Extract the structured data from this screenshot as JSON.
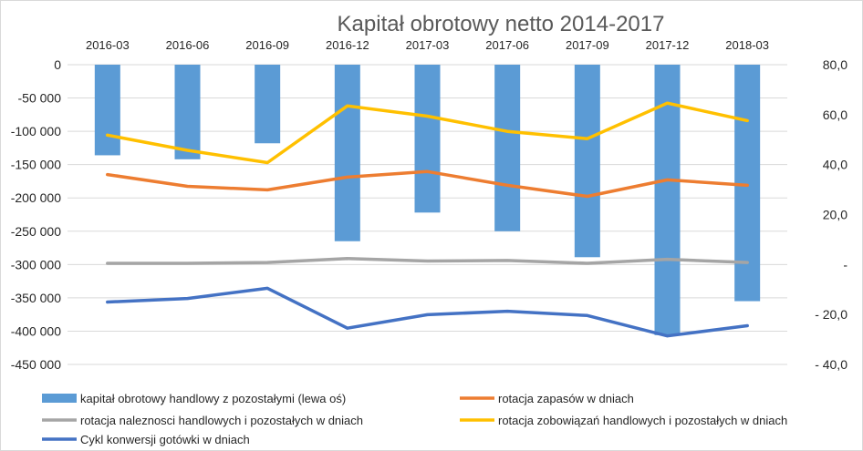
{
  "chart_data": {
    "type": "bar",
    "title": "Kapitał obrotowy netto 2014-2017",
    "categories": [
      "2016-03",
      "2016-06",
      "2016-09",
      "2016-12",
      "2017-03",
      "2017-06",
      "2017-09",
      "2017-12",
      "2018-03"
    ],
    "left_axis": {
      "ylim": [
        -450000,
        0
      ],
      "ticks": [
        0,
        -50000,
        -100000,
        -150000,
        -200000,
        -250000,
        -300000,
        -350000,
        -400000,
        -450000
      ],
      "tick_labels": [
        "0",
        "-50 000",
        "-100 000",
        "-150 000",
        "-200 000",
        "-250 000",
        "-300 000",
        "-350 000",
        "-400 000",
        "-450 000"
      ]
    },
    "right_axis": {
      "ylim": [
        -40,
        80
      ],
      "ticks": [
        80,
        60,
        40,
        20,
        0,
        -20,
        -40
      ],
      "tick_labels": [
        "80,0",
        "60,0",
        "40,0",
        "20,0",
        "-",
        "- 20,0",
        "- 40,0"
      ]
    },
    "grid": true,
    "legend_position": "bottom",
    "series": [
      {
        "name": "kapitał obrotowy handlowy z pozostałymi (lewa oś)",
        "type": "bar",
        "axis": "left",
        "color": "#5b9bd5",
        "values": [
          -136000,
          -142000,
          -118000,
          -265000,
          -222000,
          -250000,
          -289000,
          -406000,
          -355000
        ]
      },
      {
        "name": "rotacja zapasów w dniach",
        "type": "line",
        "axis": "right",
        "color": "#ed7d31",
        "values": [
          36.0,
          31.3,
          29.9,
          35.0,
          37.2,
          31.7,
          27.3,
          33.9,
          31.7
        ]
      },
      {
        "name": "rotacja naleznosci handlowych i pozostałych w dniach",
        "type": "line",
        "axis": "right",
        "color": "#a5a5a5",
        "values": [
          0.5,
          0.5,
          0.8,
          2.4,
          1.4,
          1.6,
          0.5,
          2.1,
          0.8
        ]
      },
      {
        "name": "rotacja zobowiązań handlowych i pozostałych w dniach",
        "type": "line",
        "axis": "right",
        "color": "#ffc000",
        "values": [
          51.8,
          45.7,
          40.8,
          63.5,
          59.4,
          53.3,
          50.4,
          64.6,
          57.6
        ]
      },
      {
        "name": "Cykl konwersji gotówki w dniach",
        "type": "line",
        "axis": "right",
        "color": "#4472c4",
        "values": [
          -15.0,
          -13.6,
          -9.5,
          -25.5,
          -20.1,
          -18.7,
          -20.4,
          -28.6,
          -24.5
        ]
      }
    ]
  }
}
